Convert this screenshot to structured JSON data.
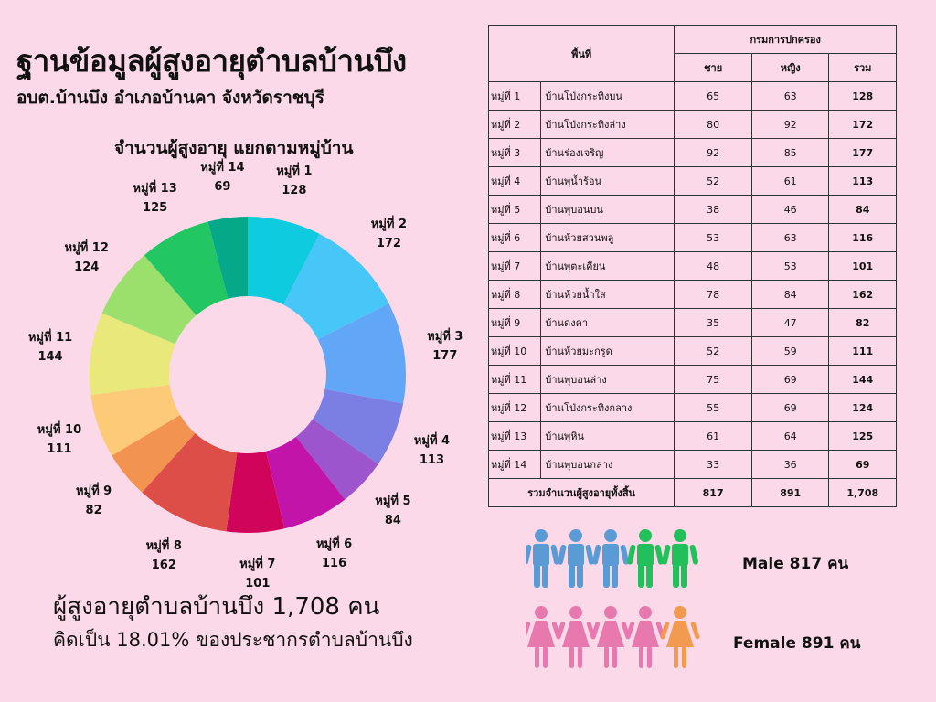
{
  "header": {
    "title": "ฐานข้อมูลผู้สูงอายุตำบลบ้านบึง",
    "subtitle": "อบต.บ้านบึง อำเภอบ้านคา จังหวัดราชบุรี",
    "chart_title": "จำนวนผู้สูงอายุ  แยกตามหมู่บ้าน"
  },
  "chart_data": {
    "type": "pie",
    "title": "จำนวนผู้สูงอายุ  แยกตามหมู่บ้าน",
    "categories": [
      "หมู่ที่ 1",
      "หมู่ที่ 2",
      "หมู่ที่ 3",
      "หมู่ที่ 4",
      "หมู่ที่ 5",
      "หมู่ที่ 6",
      "หมู่ที่ 7",
      "หมู่ที่ 8",
      "หมู่ที่ 9",
      "หมู่ที่ 10",
      "หมู่ที่ 11",
      "หมู่ที่ 12",
      "หมู่ที่ 13",
      "หมู่ที่ 14"
    ],
    "values": [
      128,
      172,
      177,
      113,
      84,
      116,
      101,
      162,
      82,
      111,
      144,
      124,
      125,
      69
    ],
    "colors": [
      "#0ecbe0",
      "#47c6f8",
      "#62a6f8",
      "#7b7fe3",
      "#9c55cc",
      "#c214a8",
      "#d1045c",
      "#dc4e47",
      "#f29350",
      "#fdcb78",
      "#e9e87a",
      "#9be06c",
      "#22c763",
      "#06a88a"
    ]
  },
  "table": {
    "header_area": "พื้นที่",
    "header_source": "กรมการปกครอง",
    "col_male": "ชาย",
    "col_female": "หญิง",
    "col_total": "รวม",
    "rows": [
      {
        "moo": "หมู่ที่ 1",
        "name": "บ้านโป่งกระทิงบน",
        "male": "65",
        "female": "63",
        "total": "128"
      },
      {
        "moo": "หมู่ที่ 2",
        "name": "บ้านโป่งกระทิงล่าง",
        "male": "80",
        "female": "92",
        "total": "172"
      },
      {
        "moo": "หมู่ที่ 3",
        "name": "บ้านร่องเจริญ",
        "male": "92",
        "female": "85",
        "total": "177"
      },
      {
        "moo": "หมู่ที่ 4",
        "name": "บ้านพุน้ำร้อน",
        "male": "52",
        "female": "61",
        "total": "113"
      },
      {
        "moo": "หมู่ที่ 5",
        "name": "บ้านพุบอนบน",
        "male": "38",
        "female": "46",
        "total": "84"
      },
      {
        "moo": "หมู่ที่ 6",
        "name": "บ้านห้วยสวนพลู",
        "male": "53",
        "female": "63",
        "total": "116"
      },
      {
        "moo": "หมู่ที่ 7",
        "name": "บ้านพุตะเคียน",
        "male": "48",
        "female": "53",
        "total": "101"
      },
      {
        "moo": "หมู่ที่ 8",
        "name": "บ้านห้วยน้ำใส",
        "male": "78",
        "female": "84",
        "total": "162"
      },
      {
        "moo": "หมู่ที่ 9",
        "name": "บ้านดงคา",
        "male": "35",
        "female": "47",
        "total": "82"
      },
      {
        "moo": "หมู่ที่ 10",
        "name": "บ้านห้วยมะกรูด",
        "male": "52",
        "female": "59",
        "total": "111"
      },
      {
        "moo": "หมู่ที่ 11",
        "name": "บ้านพุบอนล่าง",
        "male": "75",
        "female": "69",
        "total": "144"
      },
      {
        "moo": "หมู่ที่ 12",
        "name": "บ้านโป่งกระทิงกลาง",
        "male": "55",
        "female": "69",
        "total": "124"
      },
      {
        "moo": "หมู่ที่ 13",
        "name": "บ้านพุหิน",
        "male": "61",
        "female": "64",
        "total": "125"
      },
      {
        "moo": "หมู่ที่ 14",
        "name": "บ้านพุบอนกลาง",
        "male": "33",
        "female": "36",
        "total": "69"
      }
    ],
    "total_label": "รวมจำนวนผู้สูงอายุทั้งสิ้น",
    "total_male": "817",
    "total_female": "891",
    "total_all": "1,708"
  },
  "summary": {
    "line1": "ผู้สูงอายุตำบลบ้านบึง 1,708 คน",
    "line2": "คิดเป็น 18.01% ของประชากรตำบลบ้านบึง"
  },
  "legend": {
    "male_text": "Male  817 คน",
    "female_text": "Female  891 คน",
    "male_icon_colors": [
      "#5b9bd5",
      "#5b9bd5",
      "#5b9bd5",
      "#22c05a",
      "#22c05a"
    ],
    "female_icon_colors": [
      "#e879ae",
      "#e879ae",
      "#e879ae",
      "#e879ae",
      "#f29a4f"
    ]
  }
}
